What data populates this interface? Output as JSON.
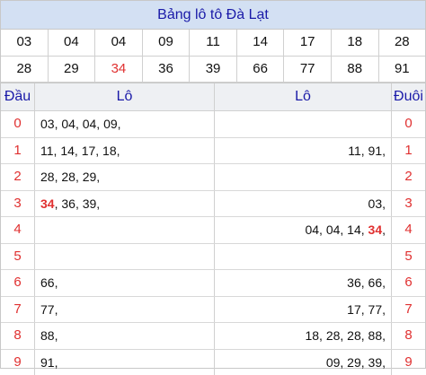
{
  "title": "Bảng lô tô Đà Lạt",
  "numbers": [
    [
      "03",
      "04",
      "04",
      "09",
      "11",
      "14",
      "17",
      "18",
      "28"
    ],
    [
      "28",
      "29",
      "34",
      "36",
      "39",
      "66",
      "77",
      "88",
      "91"
    ]
  ],
  "highlight_number": "34",
  "headers": {
    "dau": "Đầu",
    "lo_left": "Lô",
    "lo_right": "Lô",
    "duoi": "Đuôi"
  },
  "rows": [
    {
      "digit": "0",
      "left": [
        "03",
        "04",
        "04",
        "09"
      ],
      "right": []
    },
    {
      "digit": "1",
      "left": [
        "11",
        "14",
        "17",
        "18"
      ],
      "right": [
        "11",
        "91"
      ]
    },
    {
      "digit": "2",
      "left": [
        "28",
        "28",
        "29"
      ],
      "right": []
    },
    {
      "digit": "3",
      "left": [
        "34",
        "36",
        "39"
      ],
      "right": [
        "03"
      ]
    },
    {
      "digit": "4",
      "left": [],
      "right": [
        "04",
        "04",
        "14",
        "34"
      ]
    },
    {
      "digit": "5",
      "left": [],
      "right": []
    },
    {
      "digit": "6",
      "left": [
        "66"
      ],
      "right": [
        "36",
        "66"
      ]
    },
    {
      "digit": "7",
      "left": [
        "77"
      ],
      "right": [
        "17",
        "77"
      ]
    },
    {
      "digit": "8",
      "left": [
        "88"
      ],
      "right": [
        "18",
        "28",
        "28",
        "88"
      ]
    },
    {
      "digit": "9",
      "left": [
        "91"
      ],
      "right": [
        "09",
        "29",
        "39"
      ]
    }
  ],
  "colors": {
    "title_bg": "#d3e0f3",
    "header_text": "#1a1aa8",
    "accent_red": "#e03030"
  }
}
